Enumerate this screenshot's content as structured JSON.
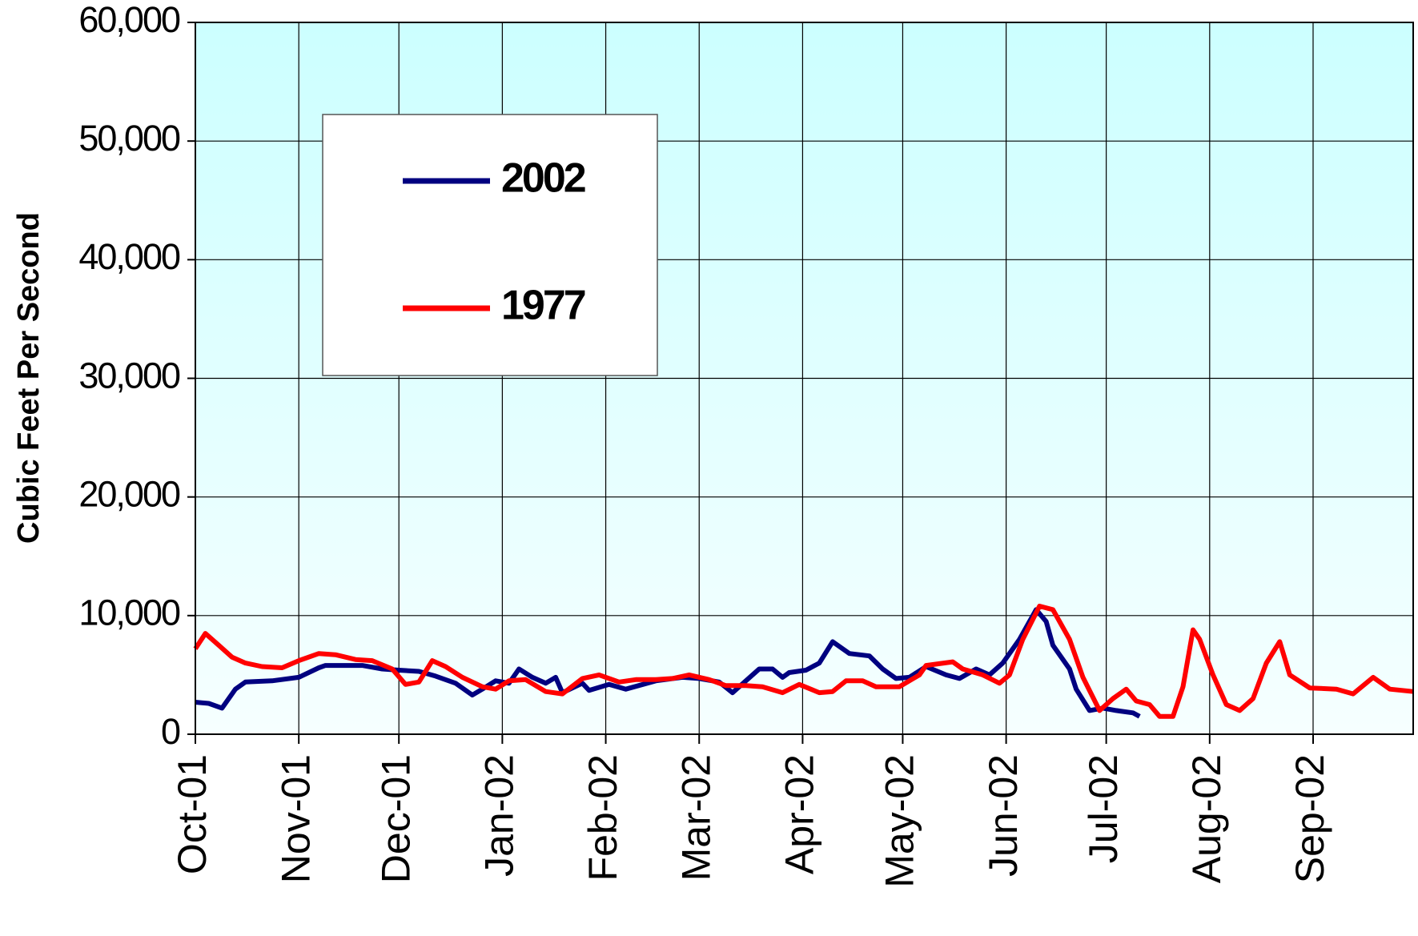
{
  "chart_data": {
    "type": "line",
    "ylabel": "Cubic Feet Per Second",
    "xlim": [
      0,
      365
    ],
    "xticks": [
      {
        "value": 0,
        "label": "Oct-01"
      },
      {
        "value": 31,
        "label": "Nov-01"
      },
      {
        "value": 61,
        "label": "Dec-01"
      },
      {
        "value": 92,
        "label": "Jan-02"
      },
      {
        "value": 123,
        "label": "Feb-02"
      },
      {
        "value": 151,
        "label": "Mar-02"
      },
      {
        "value": 182,
        "label": "Apr-02"
      },
      {
        "value": 212,
        "label": "May-02"
      },
      {
        "value": 243,
        "label": "Jun-02"
      },
      {
        "value": 273,
        "label": "Jul-02"
      },
      {
        "value": 304,
        "label": "Aug-02"
      },
      {
        "value": 335,
        "label": "Sep-02"
      }
    ],
    "ylim": [
      0,
      60000
    ],
    "yticks": [
      0,
      {
        "value": 10000,
        "label": "10,000"
      },
      {
        "value": 20000,
        "label": "20,000"
      },
      {
        "value": 30000,
        "label": "30,000"
      },
      {
        "value": 40000,
        "label": "40,000"
      },
      {
        "value": 50000,
        "label": "50,000"
      },
      {
        "value": 60000,
        "label": "60,000"
      }
    ],
    "grid": true,
    "legend": "upper left",
    "series": [
      {
        "name": "2002",
        "color": "#000080",
        "x": [
          0,
          4,
          8,
          12,
          15,
          23,
          31,
          37,
          39,
          50,
          56,
          61,
          67,
          72,
          78,
          83,
          86,
          90,
          94,
          97,
          101,
          105,
          108,
          110,
          116,
          118,
          124,
          129,
          138,
          146,
          151,
          157,
          161,
          165,
          169,
          173,
          176,
          178,
          183,
          187,
          191,
          196,
          202,
          206,
          210,
          214,
          219,
          225,
          229,
          234,
          238,
          242,
          247,
          252,
          255,
          257,
          262,
          264,
          268,
          272,
          276,
          281,
          283
        ],
        "values": [
          2700,
          2600,
          2200,
          3800,
          4400,
          4500,
          4800,
          5600,
          5800,
          5800,
          5500,
          5400,
          5300,
          4900,
          4300,
          3300,
          3800,
          4500,
          4300,
          5500,
          4800,
          4300,
          4800,
          3500,
          4300,
          3700,
          4200,
          3800,
          4500,
          4800,
          4700,
          4400,
          3500,
          4500,
          5500,
          5500,
          4800,
          5200,
          5400,
          6000,
          7800,
          6800,
          6600,
          5500,
          4700,
          4800,
          5700,
          5000,
          4700,
          5500,
          5000,
          6000,
          8000,
          10500,
          9500,
          7500,
          5500,
          3800,
          2000,
          2200,
          2000,
          1800,
          1500
        ]
      },
      {
        "name": "1977",
        "color": "#ff0000",
        "x": [
          0,
          3,
          7,
          11,
          15,
          20,
          26,
          31,
          37,
          42,
          48,
          53,
          59,
          63,
          67,
          71,
          75,
          80,
          86,
          90,
          94,
          99,
          105,
          110,
          116,
          121,
          127,
          132,
          138,
          143,
          148,
          154,
          159,
          165,
          170,
          176,
          181,
          187,
          191,
          195,
          200,
          204,
          211,
          217,
          219,
          227,
          230,
          236,
          241,
          244,
          248,
          253,
          257,
          262,
          266,
          271,
          275,
          279,
          282,
          286,
          289,
          293,
          296,
          299,
          301,
          305,
          309,
          313,
          317,
          321,
          325,
          328,
          334,
          342,
          347,
          353,
          358,
          365
        ],
        "values": [
          7200,
          8500,
          7500,
          6500,
          6000,
          5700,
          5600,
          6200,
          6800,
          6700,
          6300,
          6200,
          5500,
          4200,
          4400,
          6200,
          5700,
          4800,
          4000,
          3800,
          4500,
          4600,
          3600,
          3400,
          4700,
          5000,
          4400,
          4600,
          4600,
          4700,
          5000,
          4600,
          4100,
          4100,
          4000,
          3500,
          4200,
          3500,
          3600,
          4500,
          4500,
          4000,
          4000,
          5000,
          5800,
          6100,
          5500,
          5000,
          4300,
          5000,
          8000,
          10800,
          10500,
          8000,
          4800,
          2000,
          3000,
          3800,
          2800,
          2500,
          1500,
          1500,
          4000,
          8800,
          8000,
          5000,
          2500,
          2000,
          3000,
          6000,
          7800,
          5000,
          3900,
          3800,
          3400,
          4800,
          3800,
          3600
        ]
      }
    ]
  }
}
